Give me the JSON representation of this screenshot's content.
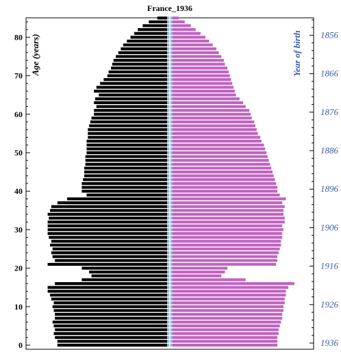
{
  "chart_data": {
    "type": "bar",
    "orientation": "horizontal-pyramid",
    "title": "France_1936",
    "ylabel": "Age (years)",
    "right_axis_label": "Year of birth",
    "ylim": [
      0,
      85
    ],
    "yticks": [
      0,
      10,
      20,
      30,
      40,
      50,
      60,
      70,
      80
    ],
    "birth_years": [
      "1856",
      "1866",
      "1876",
      "1886",
      "1896",
      "1906",
      "1916",
      "1926",
      "1936"
    ],
    "x_scale_note": "relative population per single year of age (half-width units, 0-100)",
    "ages": [
      0,
      1,
      2,
      3,
      4,
      5,
      6,
      7,
      8,
      9,
      10,
      11,
      12,
      13,
      14,
      15,
      16,
      17,
      18,
      19,
      20,
      21,
      22,
      23,
      24,
      25,
      26,
      27,
      28,
      29,
      30,
      31,
      32,
      33,
      34,
      35,
      36,
      37,
      38,
      39,
      40,
      41,
      42,
      43,
      44,
      45,
      46,
      47,
      48,
      49,
      50,
      51,
      52,
      53,
      54,
      55,
      56,
      57,
      58,
      59,
      60,
      61,
      62,
      63,
      64,
      65,
      66,
      67,
      68,
      69,
      70,
      71,
      72,
      73,
      74,
      75,
      76,
      77,
      78,
      79,
      80,
      81,
      82,
      83,
      84,
      85
    ],
    "series": [
      {
        "name": "",
        "color": "#000000",
        "values": [
          90,
          90,
          92,
          93,
          92,
          93,
          94,
          92,
          92,
          93,
          94,
          93,
          95,
          96,
          98,
          98,
          92,
          70,
          62,
          64,
          70,
          98,
          92,
          94,
          95,
          94,
          96,
          95,
          97,
          98,
          98,
          98,
          98,
          97,
          98,
          96,
          95,
          90,
          82,
          66,
          70,
          70,
          70,
          69,
          68,
          68,
          68,
          67,
          67,
          67,
          66,
          66,
          66,
          66,
          65,
          65,
          65,
          64,
          63,
          62,
          60,
          60,
          58,
          60,
          59,
          56,
          60,
          58,
          55,
          52,
          49,
          48,
          46,
          45,
          44,
          42,
          40,
          38,
          36,
          33,
          30,
          27,
          24,
          20,
          15,
          8
        ],
        "values_b": null
      },
      {
        "name": "",
        "color": "#c064c0",
        "values": [
          86,
          86,
          86,
          87,
          87,
          88,
          89,
          90,
          90,
          91,
          91,
          92,
          92,
          93,
          93,
          95,
          100,
          60,
          40,
          43,
          45,
          85,
          86,
          86,
          87,
          88,
          89,
          89,
          90,
          90,
          91,
          90,
          92,
          92,
          91,
          91,
          92,
          90,
          93,
          88,
          86,
          86,
          85,
          84,
          83,
          82,
          81,
          80,
          79,
          78,
          77,
          76,
          75,
          73,
          72,
          70,
          69,
          68,
          67,
          65,
          64,
          63,
          60,
          58,
          55,
          52,
          51,
          50,
          49,
          48,
          47,
          46,
          45,
          43,
          42,
          40,
          38,
          36,
          33,
          30,
          27,
          23,
          19,
          15,
          10,
          5
        ]
      }
    ]
  }
}
